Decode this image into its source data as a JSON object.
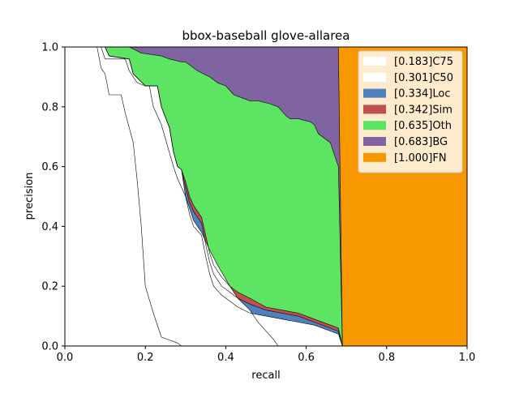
{
  "chart_data": {
    "type": "area",
    "title": "bbox-baseball glove-allarea",
    "xlabel": "recall",
    "ylabel": "precision",
    "xlim": [
      0,
      1
    ],
    "ylim": [
      0,
      1
    ],
    "x_ticks": [
      "0.0",
      "0.2",
      "0.4",
      "0.6",
      "0.8",
      "1.0"
    ],
    "y_ticks": [
      "0.0",
      "0.2",
      "0.4",
      "0.6",
      "0.8",
      "1.0"
    ],
    "grid": false,
    "legend_position": "top-right",
    "series": [
      {
        "name": "[0.183]C75",
        "color": "#ffffff",
        "points": [
          [
            0,
            1
          ],
          [
            0.08,
            1
          ],
          [
            0.09,
            0.93
          ],
          [
            0.1,
            0.91
          ],
          [
            0.11,
            0.84
          ],
          [
            0.14,
            0.84
          ],
          [
            0.15,
            0.78
          ],
          [
            0.17,
            0.68
          ],
          [
            0.18,
            0.55
          ],
          [
            0.19,
            0.4
          ],
          [
            0.2,
            0.2
          ],
          [
            0.22,
            0.11
          ],
          [
            0.24,
            0.03
          ],
          [
            0.26,
            0.02
          ],
          [
            0.28,
            0.01
          ],
          [
            0.29,
            0
          ]
        ]
      },
      {
        "name": "[0.301]C50",
        "color": "#ffffff",
        "points": [
          [
            0,
            1
          ],
          [
            0.08,
            1
          ],
          [
            0.09,
            1
          ],
          [
            0.1,
            0.96
          ],
          [
            0.15,
            0.96
          ],
          [
            0.16,
            0.92
          ],
          [
            0.18,
            0.88
          ],
          [
            0.2,
            0.87
          ],
          [
            0.21,
            0.87
          ],
          [
            0.22,
            0.8
          ],
          [
            0.24,
            0.74
          ],
          [
            0.27,
            0.6
          ],
          [
            0.28,
            0.56
          ],
          [
            0.3,
            0.5
          ],
          [
            0.31,
            0.46
          ],
          [
            0.32,
            0.42
          ],
          [
            0.34,
            0.38
          ],
          [
            0.36,
            0.32
          ],
          [
            0.38,
            0.27
          ],
          [
            0.41,
            0.2
          ],
          [
            0.43,
            0.16
          ],
          [
            0.46,
            0.12
          ],
          [
            0.48,
            0.08
          ],
          [
            0.5,
            0.05
          ],
          [
            0.52,
            0.02
          ],
          [
            0.53,
            0
          ]
        ]
      },
      {
        "name": "[0.334]Loc",
        "color": "#4f81bd",
        "points": [
          [
            0,
            1
          ],
          [
            0.1,
            1
          ],
          [
            0.11,
            0.97
          ],
          [
            0.17,
            0.97
          ],
          [
            0.18,
            0.9
          ],
          [
            0.2,
            0.88
          ],
          [
            0.22,
            0.87
          ],
          [
            0.23,
            0.79
          ],
          [
            0.25,
            0.74
          ],
          [
            0.26,
            0.65
          ],
          [
            0.28,
            0.59
          ],
          [
            0.29,
            0.58
          ],
          [
            0.3,
            0.5
          ],
          [
            0.31,
            0.45
          ],
          [
            0.32,
            0.4
          ],
          [
            0.33,
            0.37
          ],
          [
            0.34,
            0.33
          ],
          [
            0.35,
            0.27
          ],
          [
            0.36,
            0.22
          ],
          [
            0.37,
            0.19
          ],
          [
            0.38,
            0.17
          ],
          [
            0.4,
            0.15
          ],
          [
            0.42,
            0.13
          ],
          [
            0.44,
            0.12
          ],
          [
            0.46,
            0.11
          ],
          [
            0.5,
            0.1
          ],
          [
            0.54,
            0.09
          ],
          [
            0.58,
            0.08
          ],
          [
            0.62,
            0.07
          ],
          [
            0.66,
            0.05
          ],
          [
            0.68,
            0.04
          ],
          [
            0.69,
            0
          ]
        ]
      },
      {
        "name": "[0.342]Sim",
        "color": "#c0504d",
        "points": [
          [
            0,
            1
          ],
          [
            0.1,
            1
          ],
          [
            0.11,
            0.97
          ],
          [
            0.17,
            0.97
          ],
          [
            0.18,
            0.9
          ],
          [
            0.2,
            0.88
          ],
          [
            0.22,
            0.87
          ],
          [
            0.23,
            0.79
          ],
          [
            0.25,
            0.74
          ],
          [
            0.26,
            0.65
          ],
          [
            0.28,
            0.59
          ],
          [
            0.29,
            0.58
          ],
          [
            0.3,
            0.53
          ],
          [
            0.31,
            0.5
          ],
          [
            0.32,
            0.45
          ],
          [
            0.33,
            0.41
          ],
          [
            0.34,
            0.37
          ],
          [
            0.35,
            0.31
          ],
          [
            0.36,
            0.26
          ],
          [
            0.37,
            0.23
          ],
          [
            0.38,
            0.2
          ],
          [
            0.4,
            0.18
          ],
          [
            0.42,
            0.16
          ],
          [
            0.44,
            0.15
          ],
          [
            0.46,
            0.14
          ],
          [
            0.5,
            0.12
          ],
          [
            0.54,
            0.11
          ],
          [
            0.58,
            0.1
          ],
          [
            0.62,
            0.08
          ],
          [
            0.66,
            0.06
          ],
          [
            0.68,
            0.05
          ],
          [
            0.69,
            0
          ]
        ]
      },
      {
        "name": "[0.635]Oth",
        "color": "#5ee463",
        "points": [
          [
            0,
            1
          ],
          [
            0.1,
            1
          ],
          [
            0.11,
            0.97
          ],
          [
            0.17,
            0.97
          ],
          [
            0.18,
            0.9
          ],
          [
            0.2,
            0.88
          ],
          [
            0.22,
            0.87
          ],
          [
            0.23,
            0.79
          ],
          [
            0.25,
            0.74
          ],
          [
            0.26,
            0.65
          ],
          [
            0.28,
            0.59
          ],
          [
            0.29,
            0.58
          ],
          [
            0.3,
            0.54
          ],
          [
            0.31,
            0.52
          ],
          [
            0.32,
            0.49
          ],
          [
            0.33,
            0.44
          ],
          [
            0.34,
            0.4
          ],
          [
            0.35,
            0.34
          ],
          [
            0.36,
            0.29
          ],
          [
            0.37,
            0.26
          ],
          [
            0.38,
            0.23
          ],
          [
            0.4,
            0.2
          ],
          [
            0.42,
            0.18
          ],
          [
            0.44,
            0.17
          ],
          [
            0.46,
            0.16
          ],
          [
            0.5,
            0.14
          ],
          [
            0.54,
            0.12
          ],
          [
            0.58,
            0.11
          ],
          [
            0.62,
            0.09
          ],
          [
            0.66,
            0.07
          ],
          [
            0.68,
            0.06
          ],
          [
            0.69,
            0
          ]
        ]
      },
      {
        "name": "[0.683]BG",
        "color": "#8064a2",
        "points": [
          [
            0,
            1
          ],
          [
            0.68,
            1
          ],
          [
            0.68,
            0.6
          ],
          [
            0.69,
            0
          ]
        ]
      },
      {
        "name": "[1.000]FN",
        "color": "#f79800",
        "points": [
          [
            0,
            1
          ],
          [
            1,
            1
          ],
          [
            1,
            0
          ]
        ]
      }
    ],
    "region_edges": {
      "c50_to_loc": [
        [
          0.1,
          1
        ],
        [
          0.11,
          0.97
        ],
        [
          0.16,
          0.96
        ],
        [
          0.17,
          0.91
        ],
        [
          0.2,
          0.87
        ],
        [
          0.23,
          0.87
        ],
        [
          0.24,
          0.8
        ],
        [
          0.26,
          0.73
        ],
        [
          0.27,
          0.65
        ],
        [
          0.28,
          0.6
        ],
        [
          0.29,
          0.59
        ],
        [
          0.3,
          0.5
        ],
        [
          0.31,
          0.44
        ],
        [
          0.32,
          0.4
        ],
        [
          0.34,
          0.37
        ],
        [
          0.35,
          0.3
        ],
        [
          0.36,
          0.24
        ],
        [
          0.37,
          0.2
        ],
        [
          0.39,
          0.17
        ],
        [
          0.41,
          0.15
        ],
        [
          0.43,
          0.13
        ],
        [
          0.46,
          0.11
        ],
        [
          0.5,
          0.1
        ],
        [
          0.54,
          0.09
        ],
        [
          0.58,
          0.08
        ],
        [
          0.62,
          0.07
        ],
        [
          0.66,
          0.05
        ],
        [
          0.68,
          0.04
        ],
        [
          0.69,
          0
        ]
      ],
      "loc_to_sim": [
        [
          0.1,
          1
        ],
        [
          0.11,
          0.97
        ],
        [
          0.16,
          0.96
        ],
        [
          0.17,
          0.91
        ],
        [
          0.2,
          0.87
        ],
        [
          0.23,
          0.87
        ],
        [
          0.24,
          0.8
        ],
        [
          0.26,
          0.73
        ],
        [
          0.27,
          0.65
        ],
        [
          0.28,
          0.6
        ],
        [
          0.29,
          0.59
        ],
        [
          0.3,
          0.53
        ],
        [
          0.31,
          0.48
        ],
        [
          0.32,
          0.45
        ],
        [
          0.34,
          0.41
        ],
        [
          0.35,
          0.34
        ],
        [
          0.36,
          0.28
        ],
        [
          0.37,
          0.24
        ],
        [
          0.39,
          0.2
        ],
        [
          0.41,
          0.18
        ],
        [
          0.43,
          0.16
        ],
        [
          0.46,
          0.14
        ],
        [
          0.5,
          0.12
        ],
        [
          0.54,
          0.11
        ],
        [
          0.58,
          0.1
        ],
        [
          0.62,
          0.08
        ],
        [
          0.66,
          0.06
        ],
        [
          0.68,
          0.05
        ],
        [
          0.69,
          0
        ]
      ],
      "sim_to_oth": [
        [
          0.1,
          1
        ],
        [
          0.11,
          0.97
        ],
        [
          0.16,
          0.96
        ],
        [
          0.17,
          0.91
        ],
        [
          0.2,
          0.87
        ],
        [
          0.23,
          0.87
        ],
        [
          0.24,
          0.8
        ],
        [
          0.26,
          0.73
        ],
        [
          0.27,
          0.65
        ],
        [
          0.28,
          0.6
        ],
        [
          0.29,
          0.59
        ],
        [
          0.3,
          0.55
        ],
        [
          0.31,
          0.5
        ],
        [
          0.32,
          0.47
        ],
        [
          0.34,
          0.43
        ],
        [
          0.35,
          0.37
        ],
        [
          0.36,
          0.31
        ],
        [
          0.37,
          0.27
        ],
        [
          0.39,
          0.23
        ],
        [
          0.41,
          0.2
        ],
        [
          0.43,
          0.18
        ],
        [
          0.46,
          0.16
        ],
        [
          0.5,
          0.13
        ],
        [
          0.54,
          0.12
        ],
        [
          0.58,
          0.11
        ],
        [
          0.62,
          0.09
        ],
        [
          0.66,
          0.07
        ],
        [
          0.68,
          0.06
        ],
        [
          0.69,
          0
        ]
      ],
      "oth_to_bg": [
        [
          0.16,
          1
        ],
        [
          0.19,
          0.98
        ],
        [
          0.24,
          0.97
        ],
        [
          0.26,
          0.96
        ],
        [
          0.29,
          0.95
        ],
        [
          0.3,
          0.95
        ],
        [
          0.33,
          0.92
        ],
        [
          0.36,
          0.9
        ],
        [
          0.38,
          0.88
        ],
        [
          0.4,
          0.87
        ],
        [
          0.42,
          0.84
        ],
        [
          0.44,
          0.83
        ],
        [
          0.46,
          0.82
        ],
        [
          0.48,
          0.82
        ],
        [
          0.51,
          0.81
        ],
        [
          0.53,
          0.8
        ],
        [
          0.55,
          0.77
        ],
        [
          0.56,
          0.76
        ],
        [
          0.58,
          0.76
        ],
        [
          0.61,
          0.75
        ],
        [
          0.62,
          0.74
        ],
        [
          0.63,
          0.71
        ],
        [
          0.66,
          0.68
        ],
        [
          0.67,
          0.64
        ],
        [
          0.68,
          0.6
        ],
        [
          0.69,
          0
        ]
      ],
      "bg_to_fn": [
        [
          0.68,
          1
        ],
        [
          0.69,
          0
        ]
      ]
    }
  }
}
